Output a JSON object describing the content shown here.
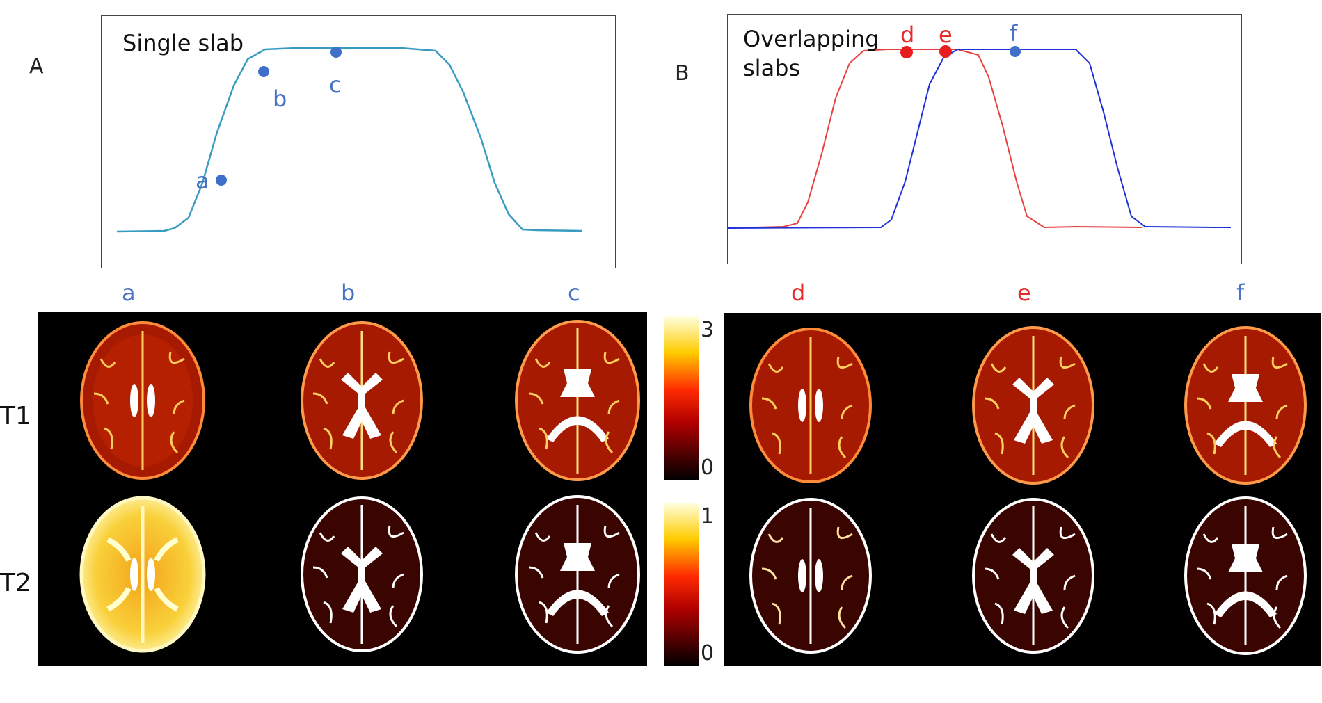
{
  "panelA": {
    "label": "A",
    "title": "Single slab",
    "points": [
      {
        "label": "a"
      },
      {
        "label": "b"
      },
      {
        "label": "c"
      }
    ],
    "curve_color": "#3a9bc0",
    "point_color": "#3f6fc9"
  },
  "panelB": {
    "label": "B",
    "title_line1": "Overlapping",
    "title_line2": "slabs",
    "points": [
      {
        "label": "d",
        "color": "#e81e1e"
      },
      {
        "label": "e",
        "color": "#e81e1e"
      },
      {
        "label": "f",
        "color": "#3f6fc9"
      }
    ],
    "curve_red": "#e84040",
    "curve_blue": "#2030d8"
  },
  "columns_left": [
    "a",
    "b",
    "c"
  ],
  "columns_right": [
    "d",
    "e",
    "f"
  ],
  "rows": [
    "T1",
    "T2"
  ],
  "colorbars": [
    {
      "max_label": "3",
      "min_label": "0"
    },
    {
      "max_label": "1",
      "min_label": "0"
    }
  ]
}
